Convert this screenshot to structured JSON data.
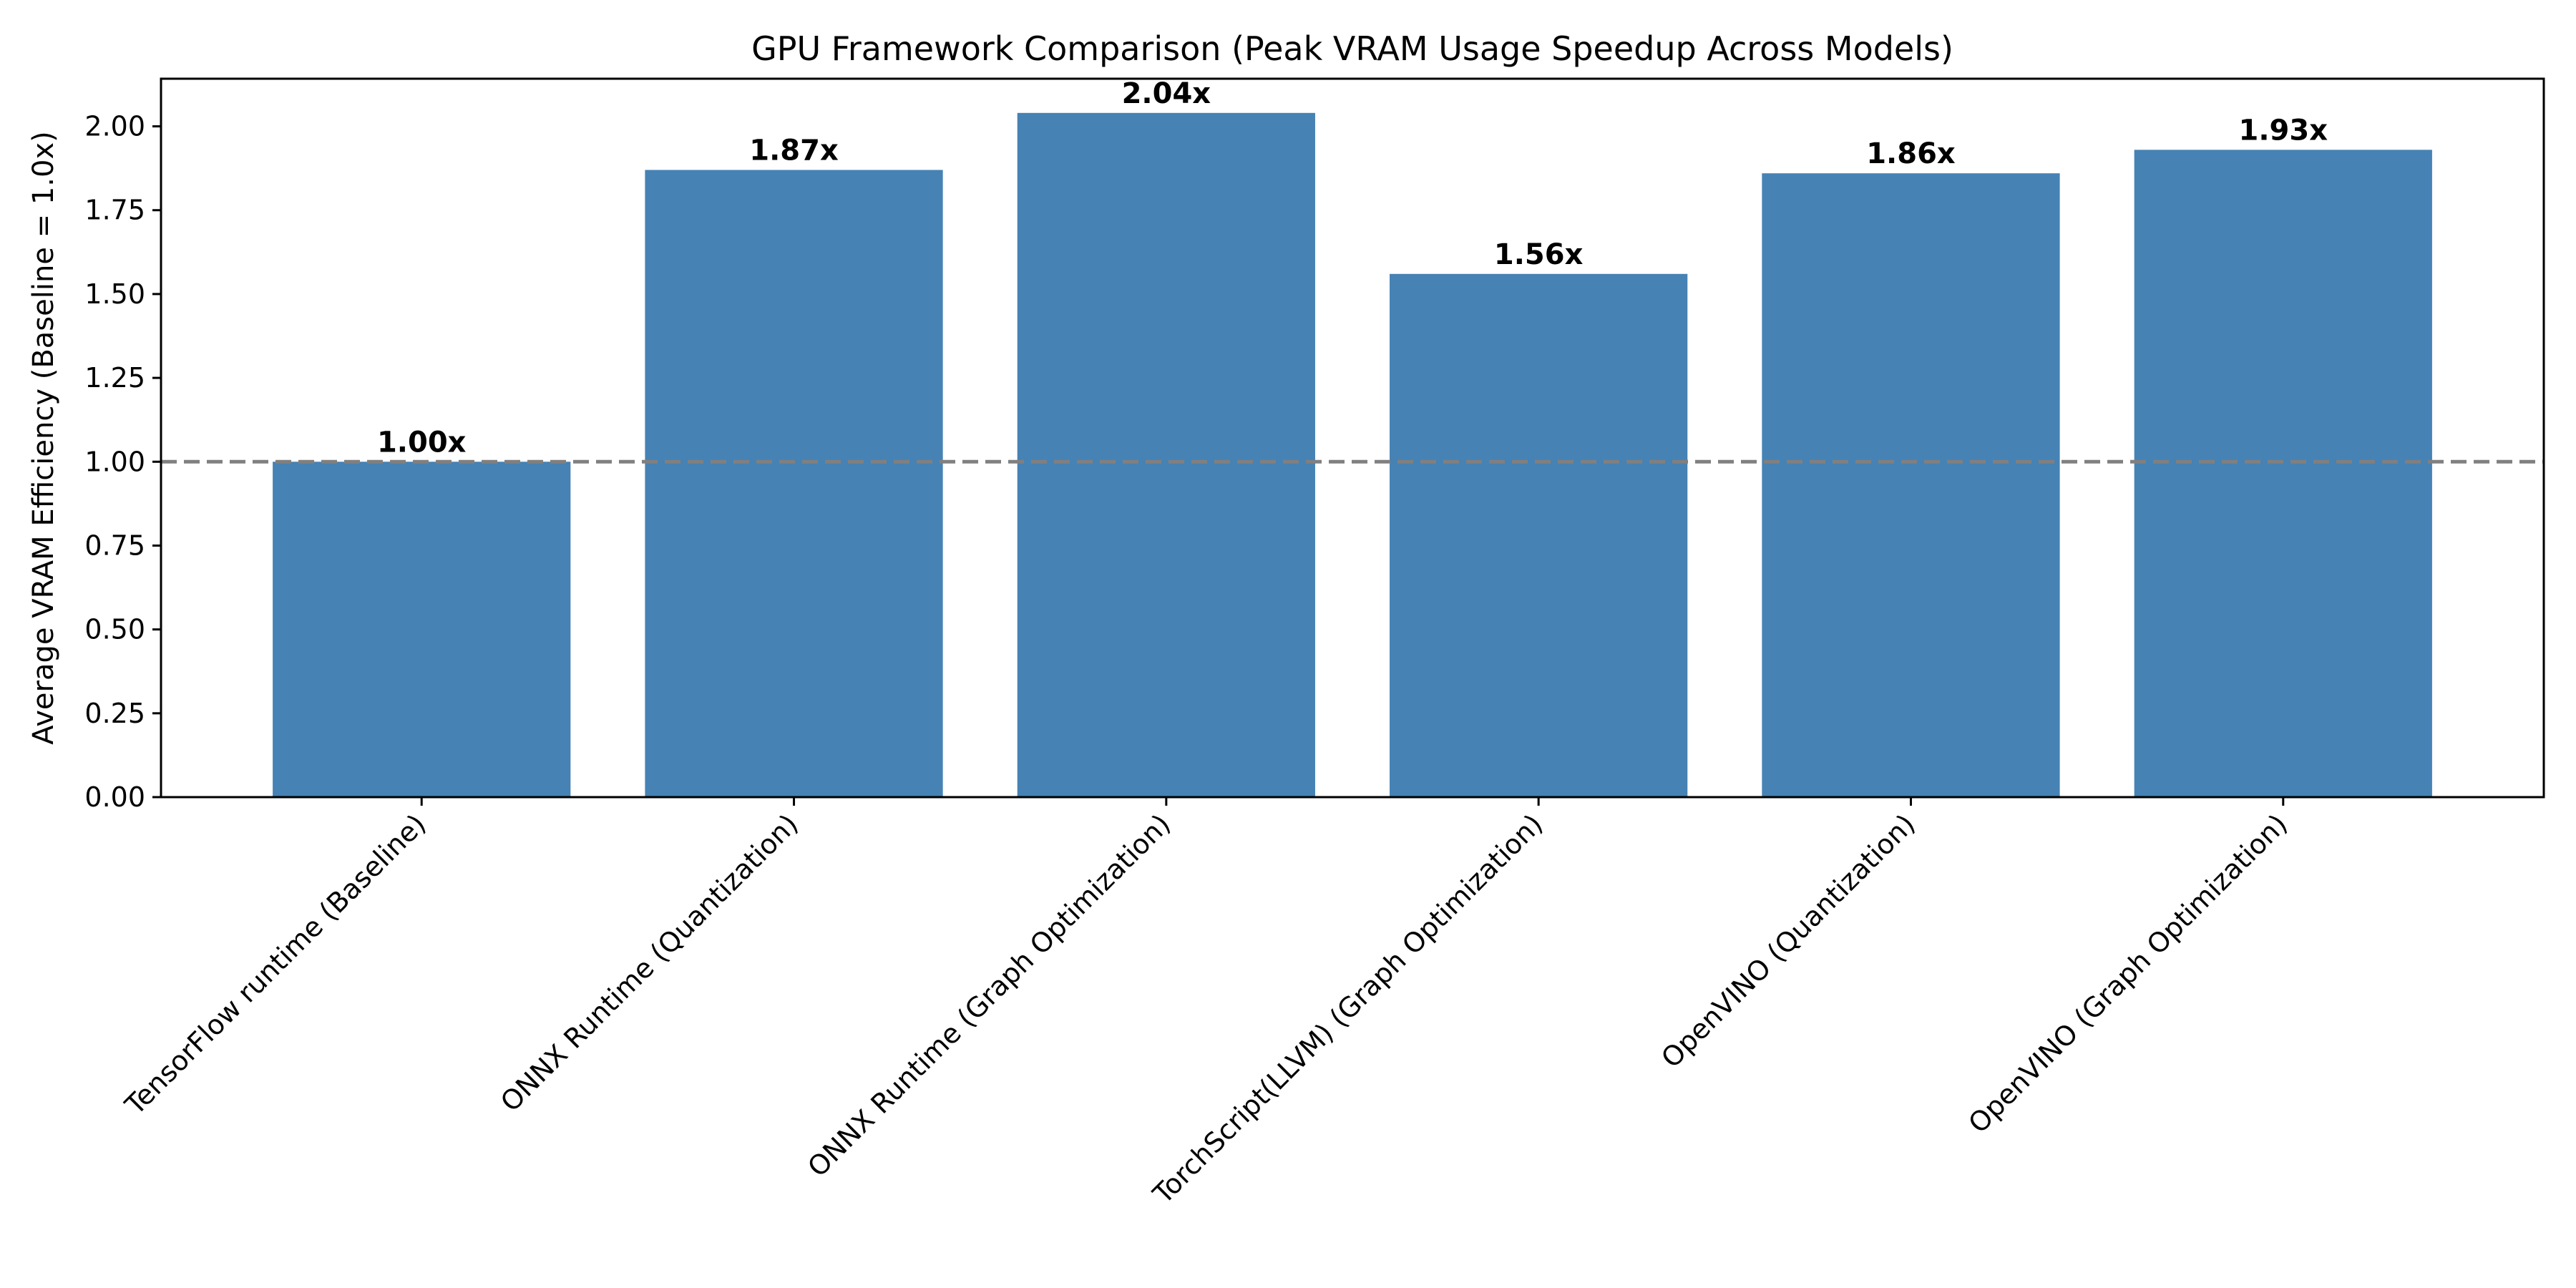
{
  "chart_data": {
    "type": "bar",
    "title": "GPU Framework Comparison (Peak VRAM Usage Speedup Across Models)",
    "xlabel": "",
    "ylabel": "Average VRAM Efficiency (Baseline = 1.0x)",
    "categories": [
      "TensorFlow runtime (Baseline)",
      "ONNX Runtime (Quantization)",
      "ONNX Runtime (Graph Optimization)",
      "TorchScript(LLVM) (Graph Optimization)",
      "OpenVINO (Quantization)",
      "OpenVINO (Graph Optimization)"
    ],
    "values": [
      1.0,
      1.87,
      2.04,
      1.56,
      1.86,
      1.93
    ],
    "value_labels": [
      "1.00x",
      "1.87x",
      "2.04x",
      "1.56x",
      "1.86x",
      "1.93x"
    ],
    "ylim": [
      0,
      2.142
    ],
    "yticks": [
      0,
      0.25,
      0.5,
      0.75,
      1.0,
      1.25,
      1.5,
      1.75,
      2.0
    ],
    "ytick_labels": [
      "0.00",
      "0.25",
      "0.50",
      "0.75",
      "1.00",
      "1.25",
      "1.50",
      "1.75",
      "2.00"
    ],
    "baseline": 1.0,
    "grid": false,
    "colors": {
      "bar": "#4682b4",
      "baseline_line": "#808080",
      "axis": "#000000"
    }
  }
}
